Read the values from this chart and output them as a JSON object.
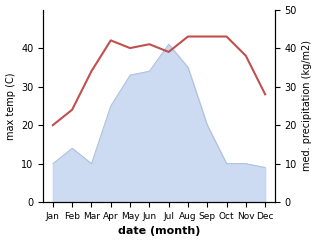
{
  "months": [
    "Jan",
    "Feb",
    "Mar",
    "Apr",
    "May",
    "Jun",
    "Jul",
    "Aug",
    "Sep",
    "Oct",
    "Nov",
    "Dec"
  ],
  "month_x": [
    1,
    2,
    3,
    4,
    5,
    6,
    7,
    8,
    9,
    10,
    11,
    12
  ],
  "temperature": [
    20,
    24,
    34,
    42,
    40,
    41,
    39,
    43,
    43,
    43,
    38,
    28
  ],
  "rainfall": [
    10,
    14,
    10,
    25,
    33,
    34,
    41,
    35,
    20,
    10,
    10,
    9
  ],
  "temp_color": "#c0504d",
  "rain_fill_color": "#c5d5f0",
  "rain_line_color": "#aabbd8",
  "ylabel_left": "max temp (C)",
  "ylabel_right": "med. precipitation (kg/m2)",
  "xlabel": "date (month)",
  "ylim": [
    0,
    50
  ],
  "yticks": [
    0,
    10,
    20,
    30,
    40
  ],
  "yticks_right": [
    0,
    10,
    20,
    30,
    40,
    50
  ],
  "background_color": "#ffffff",
  "temp_linewidth": 1.5,
  "xlabel_fontsize": 8,
  "ylabel_fontsize": 7,
  "tick_fontsize": 7,
  "xtick_fontsize": 6.5
}
